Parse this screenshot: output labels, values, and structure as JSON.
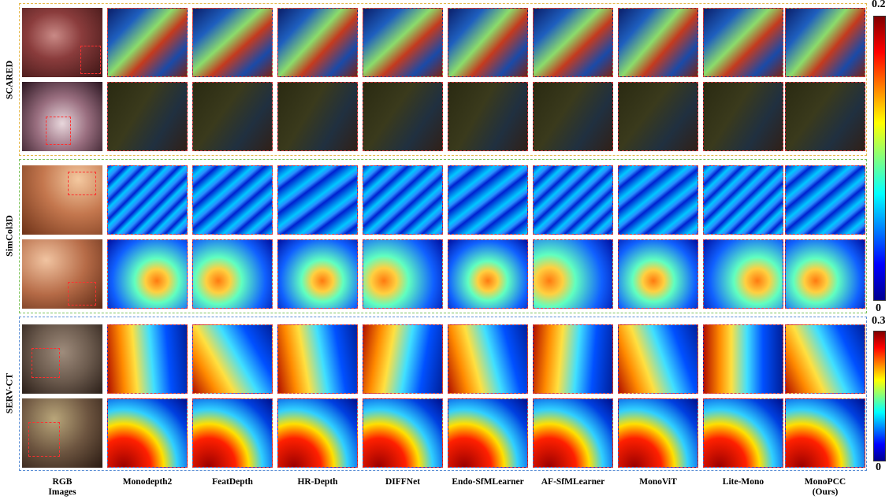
{
  "groups": [
    {
      "label": "SCARED",
      "color": "#e6b84a"
    },
    {
      "label": "SimCol3D",
      "color": "#7cc35a"
    },
    {
      "label": "SERV-CT",
      "color": "#5b8fd6"
    }
  ],
  "columns": [
    {
      "line1": "RGB",
      "line2": "Images"
    },
    {
      "line1": "Monodepth2",
      "line2": ""
    },
    {
      "line1": "FeatDepth",
      "line2": ""
    },
    {
      "line1": "HR-Depth",
      "line2": ""
    },
    {
      "line1": "DIFFNet",
      "line2": ""
    },
    {
      "line1": "Endo-SfMLearner",
      "line2": ""
    },
    {
      "line1": "AF-SfMLearner",
      "line2": ""
    },
    {
      "line1": "MonoViT",
      "line2": ""
    },
    {
      "line1": "Lite-Mono",
      "line2": ""
    },
    {
      "line1": "MonoPCC",
      "line2": "(Ours)"
    }
  ],
  "colorbars": [
    {
      "max": "0.2",
      "min": "0"
    },
    {
      "max": "0.3",
      "min": "0"
    }
  ],
  "colors": {
    "jet": [
      "#00008f",
      "#0000ff",
      "#0080ff",
      "#00ffff",
      "#80ff80",
      "#ffff00",
      "#ff8000",
      "#ff0000",
      "#800000"
    ],
    "tile_border": "#d7333a"
  }
}
